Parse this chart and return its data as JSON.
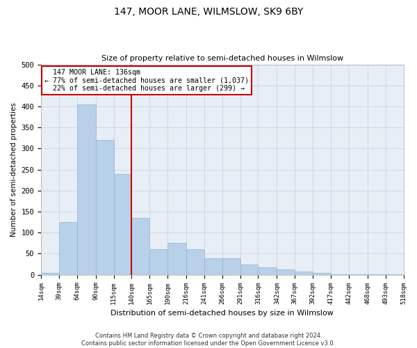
{
  "title": "147, MOOR LANE, WILMSLOW, SK9 6BY",
  "subtitle": "Size of property relative to semi-detached houses in Wilmslow",
  "xlabel": "Distribution of semi-detached houses by size in Wilmslow",
  "ylabel": "Number of semi-detached properties",
  "property_label": "147 MOOR LANE: 136sqm",
  "pct_smaller": "77% of semi-detached houses are smaller (1,037)",
  "pct_larger": "22% of semi-detached houses are larger (299)",
  "property_line_x": 140,
  "footer_line1": "Contains HM Land Registry data © Crown copyright and database right 2024.",
  "footer_line2": "Contains public sector information licensed under the Open Government Licence v3.0.",
  "bin_edges": [
    14,
    39,
    64,
    90,
    115,
    140,
    165,
    190,
    216,
    241,
    266,
    291,
    316,
    342,
    367,
    392,
    417,
    442,
    468,
    493,
    518
  ],
  "bar_heights": [
    5,
    125,
    405,
    320,
    240,
    135,
    60,
    75,
    60,
    40,
    40,
    25,
    18,
    12,
    8,
    4,
    1,
    1,
    1,
    1
  ],
  "bar_color": "#b8d0e8",
  "bar_edgecolor": "#90b8d8",
  "grid_color": "#c8d4e4",
  "annotation_box_edgecolor": "#cc0000",
  "line_color": "#cc0000",
  "bg_color": "#e8eef6",
  "ylim": [
    0,
    500
  ],
  "yticks": [
    0,
    50,
    100,
    150,
    200,
    250,
    300,
    350,
    400,
    450,
    500
  ]
}
